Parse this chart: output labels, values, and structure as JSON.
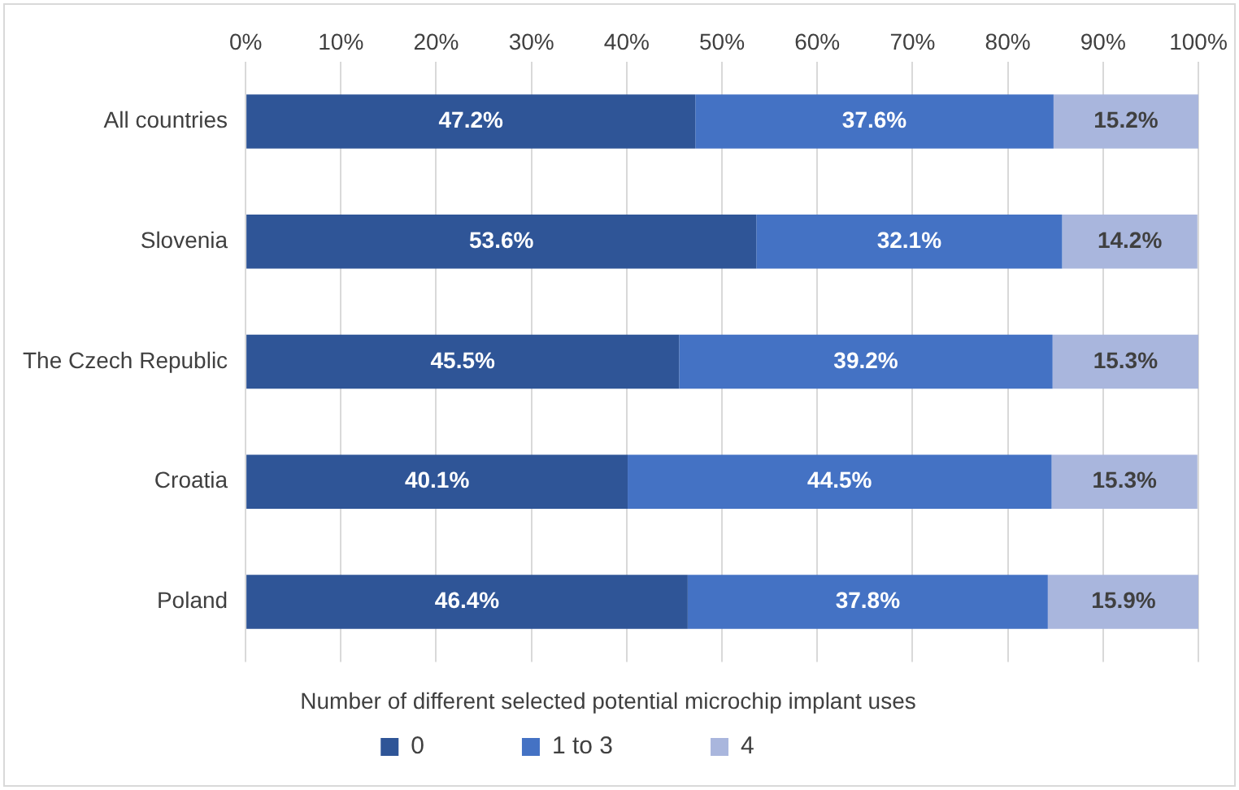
{
  "chart_data": {
    "type": "bar",
    "orientation": "horizontal",
    "stacked": true,
    "categories": [
      "All countries",
      "Slovenia",
      "The Czech Republic",
      "Croatia",
      "Poland"
    ],
    "series": [
      {
        "name": "0",
        "color": "#2f5597",
        "values": [
          47.2,
          53.6,
          45.5,
          40.1,
          46.4
        ],
        "value_labels": [
          "47.2%",
          "53.6%",
          "45.5%",
          "40.1%",
          "46.4%"
        ]
      },
      {
        "name": "1 to 3",
        "color": "#4472c4",
        "values": [
          37.6,
          32.1,
          39.2,
          44.5,
          37.8
        ],
        "value_labels": [
          "37.6%",
          "32.1%",
          "39.2%",
          "44.5%",
          "37.8%"
        ]
      },
      {
        "name": "4",
        "color": "#a9b6dd",
        "values": [
          15.2,
          14.2,
          15.3,
          15.3,
          15.9
        ],
        "value_labels": [
          "15.2%",
          "14.2%",
          "15.3%",
          "15.3%",
          "15.9%"
        ]
      }
    ],
    "xlim": [
      0,
      100
    ],
    "xticks": [
      {
        "value": 0,
        "label": "0%"
      },
      {
        "value": 10,
        "label": "10%"
      },
      {
        "value": 20,
        "label": "20%"
      },
      {
        "value": 30,
        "label": "30%"
      },
      {
        "value": 40,
        "label": "40%"
      },
      {
        "value": 50,
        "label": "50%"
      },
      {
        "value": 60,
        "label": "60%"
      },
      {
        "value": 70,
        "label": "70%"
      },
      {
        "value": 80,
        "label": "80%"
      },
      {
        "value": 90,
        "label": "90%"
      },
      {
        "value": 100,
        "label": "100%"
      }
    ],
    "grid": "x",
    "legend": "bottom",
    "legend_title": "Number of different selected potential microchip implant uses"
  }
}
